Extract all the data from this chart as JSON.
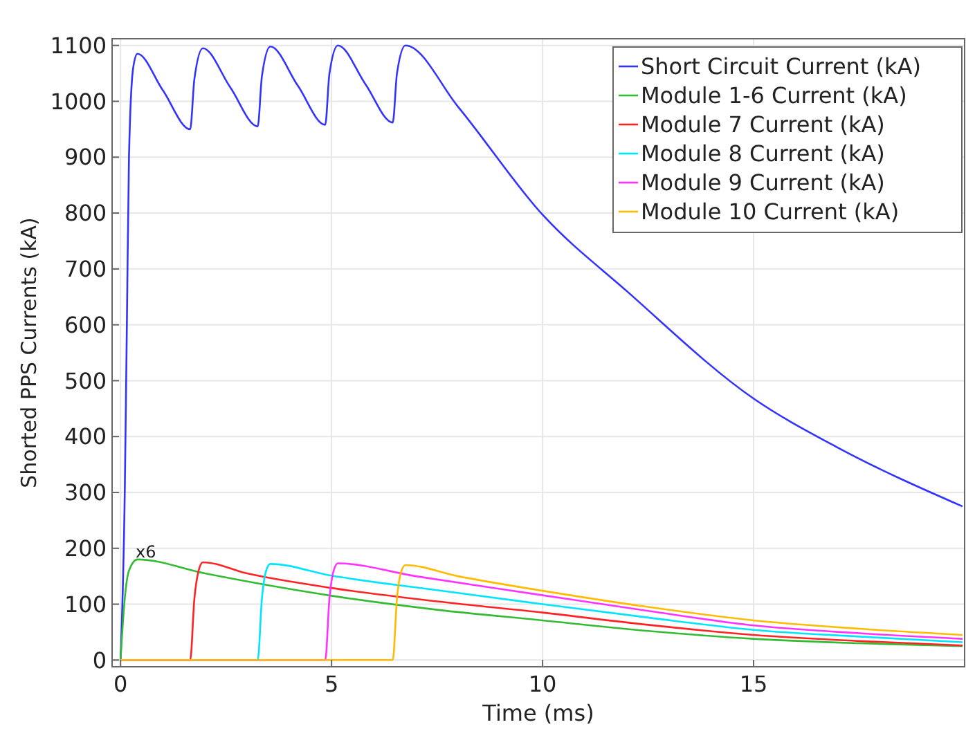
{
  "chart_data": {
    "type": "line",
    "xlabel": "Time (ms)",
    "ylabel": "Shorted PPS Currents (kA)",
    "xlim": [
      -0.2,
      20
    ],
    "ylim": [
      -12,
      1112
    ],
    "xticks": [
      0,
      5,
      10,
      15
    ],
    "yticks": [
      0,
      100,
      200,
      300,
      400,
      500,
      600,
      700,
      800,
      900,
      1000,
      1100
    ],
    "grid": true,
    "legend": "top right",
    "marker": "none",
    "line_style": "solid",
    "annotations": [
      "x6"
    ],
    "series": [
      {
        "name": "Short Circuit Current (kA)",
        "color": "#3333ff",
        "x": [
          0,
          0.1,
          0.15,
          0.2,
          0.3,
          0.4,
          1.0,
          1.65,
          1.75,
          1.95,
          2.6,
          3.25,
          3.35,
          3.55,
          4.2,
          4.85,
          4.95,
          5.15,
          5.8,
          6.45,
          6.55,
          6.75,
          8,
          10,
          12,
          15,
          17,
          19.95
        ],
        "values": [
          0,
          300,
          600,
          900,
          1060,
          1085,
          1020,
          950,
          1040,
          1095,
          1025,
          955,
          1045,
          1098,
          1028,
          958,
          1050,
          1100,
          1031,
          962,
          1050,
          1100,
          990,
          797,
          660,
          468,
          380,
          275
        ]
      },
      {
        "name": "Module 1-6 Current (kA)",
        "color": "#33bb33",
        "x": [
          0,
          0.1,
          0.2,
          0.4,
          2,
          5,
          7.5,
          10,
          12.5,
          15,
          17.5,
          19.95
        ],
        "values": [
          0,
          110,
          160,
          180,
          155,
          115,
          90,
          71,
          52,
          38,
          30,
          25
        ]
      },
      {
        "name": "Module 7 Current (kA)",
        "color": "#ff2222",
        "x": [
          0,
          1.65,
          1.75,
          1.85,
          1.95,
          3,
          5,
          7.5,
          10,
          12.5,
          15,
          17.5,
          19.95
        ],
        "values": [
          0,
          0,
          110,
          160,
          175,
          155,
          129,
          105,
          85,
          63,
          45,
          34,
          26
        ]
      },
      {
        "name": "Module 8 Current (kA)",
        "color": "#00e5ff",
        "x": [
          0,
          3.25,
          3.35,
          3.45,
          3.55,
          5,
          7.5,
          10,
          12.5,
          15,
          17.5,
          19.95
        ],
        "values": [
          0,
          0,
          110,
          160,
          172,
          151,
          125,
          100,
          76,
          54,
          42,
          32
        ]
      },
      {
        "name": "Module 9 Current (kA)",
        "color": "#ff33ff",
        "x": [
          0,
          4.85,
          4.95,
          5.05,
          5.15,
          7,
          10,
          12.5,
          15,
          17.5,
          19.95
        ],
        "values": [
          0,
          0,
          110,
          160,
          173,
          150,
          116,
          88,
          62,
          48,
          38
        ]
      },
      {
        "name": "Module 10 Current (kA)",
        "color": "#ffbb00",
        "x": [
          0,
          6.45,
          6.55,
          6.65,
          6.75,
          8,
          10,
          12.5,
          15,
          17.5,
          19.95
        ],
        "values": [
          0,
          0,
          110,
          158,
          170,
          150,
          124,
          95,
          71,
          56,
          45
        ]
      }
    ]
  }
}
